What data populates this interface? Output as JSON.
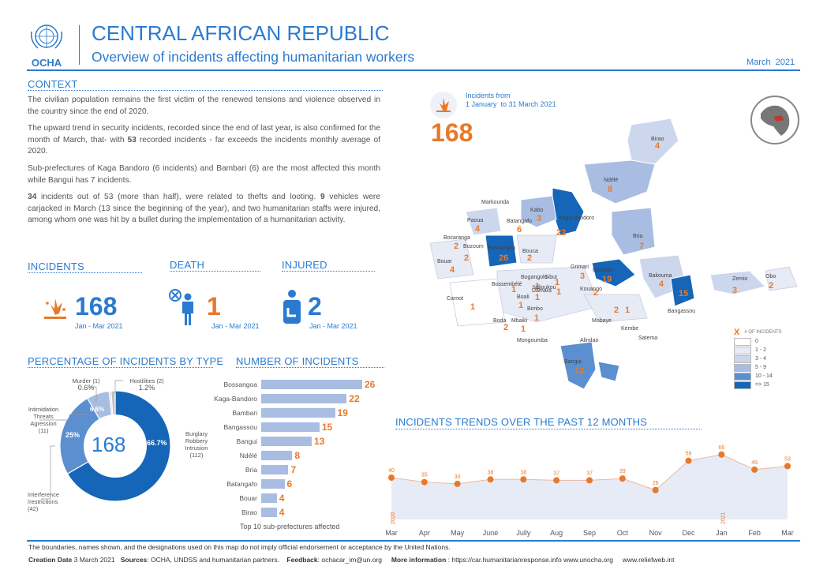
{
  "header": {
    "org": "OCHA",
    "title": "CENTRAL AFRICAN REPUBLIC",
    "subtitle": "Overview of incidents affecting humanitarian workers",
    "date": "March  2021"
  },
  "context": {
    "title": "CONTEXT",
    "p1": "The civilian population remains the first victim of the renewed tensions and violence observed in the country since the end of 2020.",
    "p2a": "The upward trend in security incidents, recorded since the end of last year, is also confirmed for the month of March, that- with ",
    "p2b": "53",
    "p2c": " recorded incidents - far exceeds the incidents monthly average of 2020.",
    "p3": "Sub-prefectures of Kaga Bandoro (6 incidents) and Bambari (6) are the most affected this month while Bangui has 7 incidents.",
    "p4a": "34",
    "p4b": " incidents out of 53 (more than half), were related to thefts and looting. ",
    "p4c": "9",
    "p4d": " vehicles were carjacked in March (13 since the beginning of the year), and two humanitarian staffs were injured, among whom one was hit by a bullet during the implementation of a humanitarian activity."
  },
  "kpis": {
    "incidents": {
      "title": "INCIDENTS",
      "value": "168",
      "period": "Jan - Mar 2021"
    },
    "death": {
      "title": "DEATH",
      "value": "1",
      "period": "Jan - Mar 2021"
    },
    "injured": {
      "title": "INJURED",
      "value": "2",
      "period": "Jan - Mar 2021"
    }
  },
  "map": {
    "incidents_label": "Incidents from",
    "incidents_period": "1 January  to 31 March 2021",
    "total": "168",
    "legend": {
      "title": "# OF INCIDENTS",
      "x": "X",
      "items": [
        "0",
        "1 - 2",
        "3 - 4",
        "5 - 9",
        "10 - 14",
        "=> 15"
      ],
      "colors": [
        "#ffffff",
        "#e6ebf6",
        "#ccd7ee",
        "#a9bde3",
        "#5b8fcf",
        "#1565b8"
      ]
    },
    "places": [
      {
        "name": "Birao",
        "value": "4"
      },
      {
        "name": "Ndélé",
        "value": "8"
      },
      {
        "name": "Markounda",
        "value": ""
      },
      {
        "name": "Kabo",
        "value": "3"
      },
      {
        "name": "Batangafo",
        "value": "6"
      },
      {
        "name": "Kaga-Bandoro",
        "value": "22"
      },
      {
        "name": "Paoua",
        "value": "4"
      },
      {
        "name": "Bocaranga",
        "value": "2"
      },
      {
        "name": "Bozoum",
        "value": "2"
      },
      {
        "name": "Bossangoa",
        "value": "26"
      },
      {
        "name": "Bouca",
        "value": "2"
      },
      {
        "name": "Bria",
        "value": "7"
      },
      {
        "name": "Bouar",
        "value": "4"
      },
      {
        "name": "Sibut",
        "value": "1"
      },
      {
        "name": "Grimari",
        "value": "3"
      },
      {
        "name": "Bambari",
        "value": "19"
      },
      {
        "name": "Bakouma",
        "value": "4"
      },
      {
        "name": "Zemio",
        "value": "3"
      },
      {
        "name": "Obo",
        "value": "2"
      },
      {
        "name": "Bossembélé",
        "value": "1"
      },
      {
        "name": "Bogangolo",
        "value": "1"
      },
      {
        "name": "Ndjoukou",
        "value": "1"
      },
      {
        "name": "Damara",
        "value": "1"
      },
      {
        "name": "Kouango",
        "value": "2"
      },
      {
        "name": "Bangassou",
        "value": "15"
      },
      {
        "name": "Carnot",
        "value": "1"
      },
      {
        "name": "Boali",
        "value": "1"
      },
      {
        "name": "Bimbo",
        "value": "1"
      },
      {
        "name": "Boda",
        "value": "2"
      },
      {
        "name": "Mbaiki",
        "value": "1"
      },
      {
        "name": "Mobaye",
        "value": "2"
      },
      {
        "name": "Kembe",
        "value": "1"
      },
      {
        "name": "Mongoumba",
        "value": ""
      },
      {
        "name": "Alindao",
        "value": ""
      },
      {
        "name": "Satema",
        "value": ""
      },
      {
        "name": "Bangui",
        "value": "13"
      }
    ]
  },
  "pie": {
    "title": "PERCENTAGE OF INCIDENTS BY TYPE",
    "center": "168",
    "slices": [
      {
        "label": "Burglary Robbery Intrusion",
        "count": "(112)",
        "pct": "66.7%",
        "value": 66.7,
        "color": "#1565b8"
      },
      {
        "label": "Interference /restrictions",
        "count": "(42)",
        "pct": "25%",
        "value": 25,
        "color": "#5b8fcf"
      },
      {
        "label": "Intimidation Threats Agression",
        "count": "(11)",
        "pct": "6.6%",
        "value": 6.6,
        "color": "#a9bde3"
      },
      {
        "label": "Murder (1)",
        "count": "",
        "pct": "0.6%",
        "value": 0.6,
        "color": "#d9d9d9"
      },
      {
        "label": "Hostilities (2)",
        "count": "",
        "pct": "1.2%",
        "value": 1.2,
        "color": "#bfbfbf"
      }
    ]
  },
  "bars": {
    "title": "NUMBER OF INCIDENTS",
    "caption": "Top 10 sub-prefectures affected",
    "items": [
      {
        "label": "Bossangoa",
        "value": 26
      },
      {
        "label": "Kaga-Bandoro",
        "value": 22
      },
      {
        "label": "Bambari",
        "value": 19
      },
      {
        "label": "Bangassou",
        "value": 15
      },
      {
        "label": "Bangui",
        "value": 13
      },
      {
        "label": "Ndélé",
        "value": 8
      },
      {
        "label": "Bria",
        "value": 7
      },
      {
        "label": "Batangafo",
        "value": 6
      },
      {
        "label": "Bouar",
        "value": 4
      },
      {
        "label": "Birao",
        "value": 4
      }
    ]
  },
  "chart_data": {
    "type": "area",
    "title": "INCIDENTS TRENDS OVER THE PAST 12 MONTHS",
    "categories": [
      "Mar",
      "Apr",
      "May",
      "June",
      "Jully",
      "Aug",
      "Sep",
      "Oct",
      "Nov",
      "Dec",
      "Jan",
      "Feb",
      "Mar"
    ],
    "values": [
      40,
      35,
      33,
      38,
      38,
      37,
      37,
      39,
      26,
      59,
      66,
      49,
      53
    ],
    "year_markers": [
      "2020",
      "2021"
    ],
    "ylim": [
      0,
      80
    ]
  },
  "footer": {
    "disclaimer": "The boundaries, names shown, and the designations used on this map do not imply official endorsement or acceptance by the United Nations.",
    "creation_label": "Creation Date",
    "creation_value": " 3 March 2021",
    "sources_label": "Sources",
    "sources_value": ": OCHA, UNDSS and humanitarian partners.",
    "feedback_label": "Feedback",
    "feedback_value": ": ochacar_im@un.org",
    "more_label": "More information",
    "more_value": " : https://car.humanitarianresponse.info  www.unocha.org",
    "reliefweb": "www.reliefweb.int"
  },
  "colors": {
    "accent": "#2a7bd0",
    "highlight": "#e8792b"
  }
}
